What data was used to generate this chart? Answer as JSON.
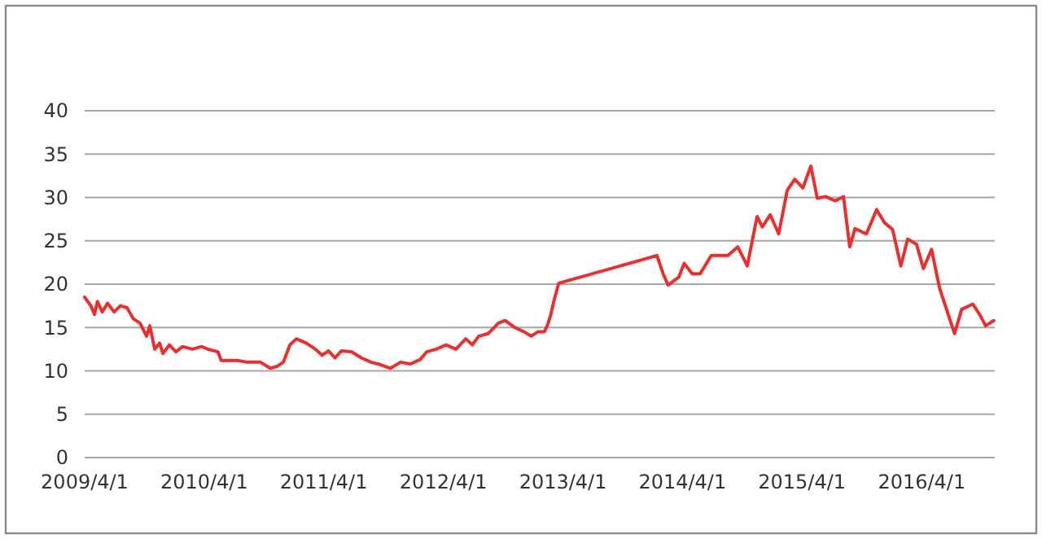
{
  "chart_data": {
    "type": "line",
    "grid": "y",
    "marker": "none",
    "line_style": "solid",
    "xlim": [
      "2009-04-01",
      "2016-11-10"
    ],
    "xticks": [
      {
        "value": "2009-04-01",
        "label": "2009/4/1"
      },
      {
        "value": "2010-04-01",
        "label": "2010/4/1"
      },
      {
        "value": "2011-04-01",
        "label": "2011/4/1"
      },
      {
        "value": "2012-04-01",
        "label": "2012/4/1"
      },
      {
        "value": "2013-04-01",
        "label": "2013/4/1"
      },
      {
        "value": "2014-04-01",
        "label": "2014/4/1"
      },
      {
        "value": "2015-04-01",
        "label": "2015/4/1"
      },
      {
        "value": "2016-04-01",
        "label": "2016/4/1"
      }
    ],
    "ylim": [
      0,
      40
    ],
    "yticks": [
      0,
      5,
      10,
      15,
      20,
      25,
      30,
      35,
      40
    ],
    "x": [
      "2009-04-01",
      "2009-04-20",
      "2009-05-01",
      "2009-05-10",
      "2009-05-25",
      "2009-06-10",
      "2009-06-30",
      "2009-07-19",
      "2009-08-08",
      "2009-08-28",
      "2009-09-17",
      "2009-10-07",
      "2009-10-17",
      "2009-11-01",
      "2009-11-16",
      "2009-11-26",
      "2009-12-16",
      "2010-01-05",
      "2010-01-25",
      "2010-02-24",
      "2010-03-24",
      "2010-04-13",
      "2010-05-13",
      "2010-05-23",
      "2010-06-12",
      "2010-07-12",
      "2010-08-11",
      "2010-09-20",
      "2010-10-20",
      "2010-11-09",
      "2010-11-29",
      "2010-12-19",
      "2011-01-08",
      "2011-02-07",
      "2011-03-07",
      "2011-03-27",
      "2011-04-16",
      "2011-05-06",
      "2011-05-25",
      "2011-06-25",
      "2011-07-25",
      "2011-08-24",
      "2011-09-23",
      "2011-10-22",
      "2011-11-22",
      "2011-12-22",
      "2012-01-21",
      "2012-02-10",
      "2012-03-10",
      "2012-04-09",
      "2012-05-09",
      "2012-06-08",
      "2012-06-28",
      "2012-07-18",
      "2012-08-16",
      "2012-09-16",
      "2012-10-06",
      "2012-11-05",
      "2012-12-04",
      "2012-12-25",
      "2013-01-14",
      "2013-02-03",
      "2013-02-13",
      "2013-02-23",
      "2013-03-04",
      "2013-03-19",
      "2014-01-13",
      "2014-02-01",
      "2014-02-16",
      "2014-03-21",
      "2014-04-06",
      "2014-05-01",
      "2014-05-25",
      "2014-06-28",
      "2014-08-18",
      "2014-09-17",
      "2014-10-16",
      "2014-11-15",
      "2014-12-01",
      "2014-12-25",
      "2015-01-20",
      "2015-02-15",
      "2015-03-10",
      "2015-04-04",
      "2015-04-28",
      "2015-05-18",
      "2015-06-12",
      "2015-07-12",
      "2015-08-06",
      "2015-08-25",
      "2015-09-10",
      "2015-10-15",
      "2015-11-15",
      "2015-12-09",
      "2016-01-03",
      "2016-01-28",
      "2016-02-18",
      "2016-03-16",
      "2016-04-06",
      "2016-05-01",
      "2016-05-25",
      "2016-06-21",
      "2016-07-10",
      "2016-08-01",
      "2016-09-04",
      "2016-09-28",
      "2016-10-13",
      "2016-11-07"
    ],
    "series": [
      {
        "color": "#e8312f",
        "values": [
          18.5,
          17.5,
          16.5,
          18,
          16.8,
          17.8,
          16.8,
          17.5,
          17.3,
          16,
          15.5,
          14,
          15.2,
          12.5,
          13.2,
          12,
          13,
          12.2,
          12.8,
          12.5,
          12.8,
          12.5,
          12.2,
          11.2,
          11.2,
          11.2,
          11,
          11,
          10.3,
          10.5,
          11,
          13,
          13.7,
          13.2,
          12.5,
          11.8,
          12.3,
          11.5,
          12.3,
          12.2,
          11.5,
          11,
          10.7,
          10.3,
          11,
          10.8,
          11.3,
          12.2,
          12.5,
          13,
          12.5,
          13.7,
          13,
          14,
          14.3,
          15.5,
          15.8,
          15,
          14.5,
          14,
          14.5,
          14.5,
          15.3,
          16.5,
          18,
          20.1,
          23.3,
          21.2,
          19.9,
          20.8,
          22.4,
          21.2,
          21.2,
          23.3,
          23.3,
          24.3,
          22.1,
          27.8,
          26.6,
          28,
          25.8,
          30.8,
          32.1,
          31.1,
          33.6,
          29.9,
          30.1,
          29.6,
          30.1,
          24.3,
          26.4,
          25.8,
          28.6,
          27.1,
          26.3,
          22.1,
          25.2,
          24.6,
          21.8,
          24,
          19.6,
          16.5,
          14.3,
          17.1,
          17.7,
          16.3,
          15.2,
          15.8
        ]
      }
    ]
  }
}
